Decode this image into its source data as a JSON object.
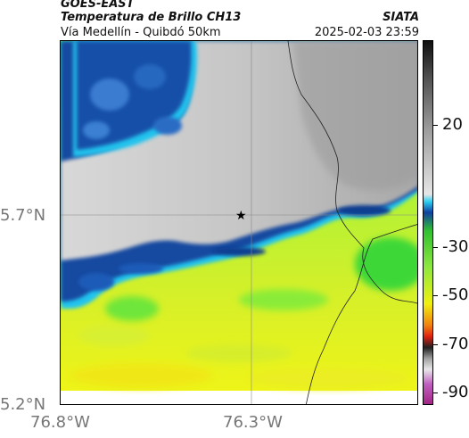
{
  "header": {
    "satellite": "GOES-EAST",
    "product": "Temperatura de Brillo CH13",
    "route": "Vía Medellín - Quibdó 50km",
    "organization": "SIATA",
    "datetime": "2025-02-03 23:59"
  },
  "axes": {
    "lat_labels": [
      "5.7°N",
      "5.2°N"
    ],
    "lon_labels": [
      "76.8°W",
      "76.3°W"
    ]
  },
  "colorbar": {
    "labels": [
      "20",
      "-30",
      "-50",
      "-70",
      "-90"
    ],
    "values": [
      20,
      -30,
      -50,
      -70,
      -90
    ],
    "range": [
      -95,
      55
    ]
  },
  "map": {
    "marker": "star-icon",
    "colors": {
      "warm_ground": "#a8f23a",
      "cloud_gray": "#c8c8c8",
      "cold_blue": "#1450a0",
      "cyan_edge": "#2ac8ee",
      "yellow": "#e8f020"
    }
  }
}
